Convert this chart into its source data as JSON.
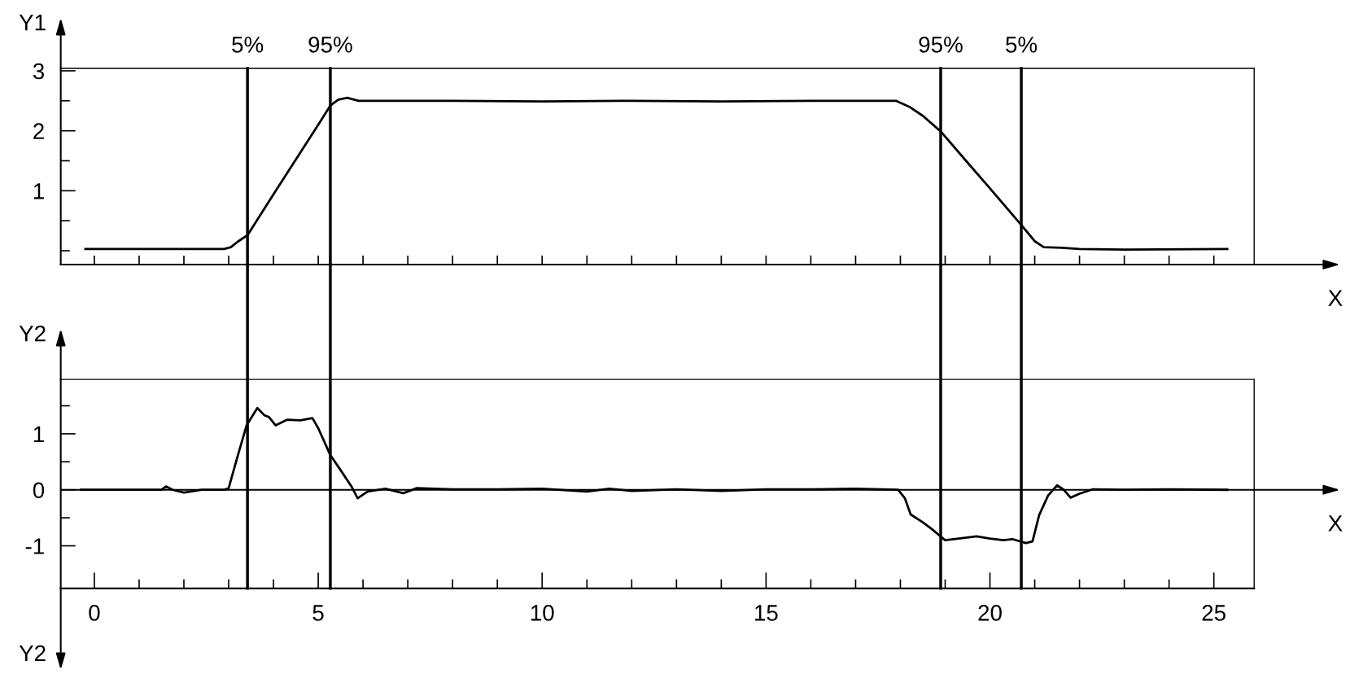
{
  "chart_data": [
    {
      "type": "line",
      "ylabel": "Y1",
      "xlabel": "X",
      "series": [
        {
          "color": "#000000",
          "x": [
            -0.2,
            2.9,
            3.05,
            3.2,
            3.42,
            4.0,
            4.5,
            5.0,
            5.27,
            5.45,
            5.65,
            5.9,
            8,
            10,
            12,
            14,
            16,
            17.9,
            18.2,
            18.5,
            18.9,
            19.5,
            20.0,
            20.7,
            21.0,
            21.2,
            21.6,
            22.0,
            23,
            25.3
          ],
          "values": [
            0.03,
            0.03,
            0.06,
            0.15,
            0.26,
            0.94,
            1.52,
            2.1,
            2.42,
            2.52,
            2.55,
            2.5,
            2.5,
            2.49,
            2.5,
            2.49,
            2.5,
            2.5,
            2.4,
            2.25,
            1.99,
            1.47,
            1.04,
            0.43,
            0.16,
            0.06,
            0.05,
            0.03,
            0.02,
            0.03
          ]
        }
      ],
      "xlim": [
        -0.75,
        25.9
      ],
      "ylim": [
        -0.23,
        3.04
      ],
      "xticks": [
        {
          "value": 0,
          "label": null
        },
        {
          "value": 1,
          "label": null
        },
        {
          "value": 2,
          "label": null
        },
        {
          "value": 3,
          "label": null
        },
        {
          "value": 4,
          "label": null
        },
        {
          "value": 5,
          "label": null
        },
        {
          "value": 6,
          "label": null
        },
        {
          "value": 7,
          "label": null
        },
        {
          "value": 8,
          "label": null
        },
        {
          "value": 9,
          "label": null
        },
        {
          "value": 10,
          "label": null
        },
        {
          "value": 11,
          "label": null
        },
        {
          "value": 12,
          "label": null
        },
        {
          "value": 13,
          "label": null
        },
        {
          "value": 14,
          "label": null
        },
        {
          "value": 15,
          "label": null
        },
        {
          "value": 16,
          "label": null
        },
        {
          "value": 17,
          "label": null
        },
        {
          "value": 18,
          "label": null
        },
        {
          "value": 19,
          "label": null
        },
        {
          "value": 20,
          "label": null
        },
        {
          "value": 21,
          "label": null
        },
        {
          "value": 22,
          "label": null
        },
        {
          "value": 23,
          "label": null
        },
        {
          "value": 24,
          "label": null
        },
        {
          "value": 25,
          "label": null
        }
      ],
      "yticks": [
        {
          "value": 0,
          "label": null
        },
        {
          "value": 0.5,
          "label": null
        },
        1,
        {
          "value": 1.5,
          "label": null
        },
        2,
        {
          "value": 2.5,
          "label": null
        },
        3
      ],
      "tick_labels": "y",
      "grid": false,
      "legend": false,
      "ref_lines": [
        {
          "axis": "x",
          "value": 3.42
        },
        {
          "axis": "x",
          "value": 5.27
        },
        {
          "axis": "x",
          "value": 18.9
        },
        {
          "axis": "x",
          "value": 20.7
        }
      ],
      "annotations": [
        {
          "text": "5%",
          "x": 3.42,
          "y": 3.04
        },
        {
          "text": "95%",
          "x": 5.27,
          "y": 3.04
        },
        {
          "text": "95%",
          "x": 18.9,
          "y": 3.04
        },
        {
          "text": "5%",
          "x": 20.7,
          "y": 3.04
        }
      ]
    },
    {
      "type": "line",
      "ylabel": "Y2",
      "xlabel": "X",
      "series": [
        {
          "color": "#000000",
          "x": [
            -0.3,
            0.5,
            1.0,
            1.5,
            1.6,
            1.75,
            2.0,
            2.4,
            2.9,
            3.0,
            3.2,
            3.4,
            3.64,
            3.8,
            3.9,
            4.05,
            4.3,
            4.6,
            4.87,
            5.0,
            5.27,
            5.5,
            5.75,
            5.88,
            6.1,
            6.5,
            6.9,
            7.2,
            8,
            9,
            10,
            11,
            11.5,
            12,
            13,
            14,
            15,
            16,
            17,
            17.95,
            18.1,
            18.23,
            18.5,
            18.7,
            19.0,
            19.3,
            19.7,
            20.0,
            20.3,
            20.5,
            20.8,
            20.95,
            21.1,
            21.3,
            21.5,
            21.65,
            21.8,
            22.0,
            22.3,
            23,
            24,
            25.3
          ],
          "values": [
            0,
            0,
            0,
            0,
            0.06,
            0.0,
            -0.05,
            0,
            0,
            0.03,
            0.6,
            1.15,
            1.46,
            1.33,
            1.3,
            1.15,
            1.25,
            1.24,
            1.28,
            1.1,
            0.62,
            0.35,
            0.05,
            -0.15,
            -0.03,
            0.02,
            -0.06,
            0.03,
            0.01,
            0.01,
            0.02,
            -0.03,
            0.02,
            -0.02,
            0.01,
            -0.02,
            0.01,
            0.01,
            0.02,
            0.0,
            -0.15,
            -0.44,
            -0.58,
            -0.7,
            -0.9,
            -0.87,
            -0.83,
            -0.87,
            -0.9,
            -0.88,
            -0.95,
            -0.92,
            -0.45,
            -0.1,
            0.08,
            0.0,
            -0.14,
            -0.07,
            0.01,
            0.0,
            0.01,
            0.0
          ]
        }
      ],
      "xlim": [
        -0.75,
        25.9
      ],
      "ylim": [
        -1.76,
        1.97
      ],
      "xticks": [
        {
          "value": 0,
          "label": "0"
        },
        {
          "value": 1,
          "label": null
        },
        {
          "value": 2,
          "label": null
        },
        {
          "value": 3,
          "label": null
        },
        {
          "value": 4,
          "label": null
        },
        {
          "value": 5,
          "label": "5"
        },
        {
          "value": 6,
          "label": null
        },
        {
          "value": 7,
          "label": null
        },
        {
          "value": 8,
          "label": null
        },
        {
          "value": 9,
          "label": null
        },
        {
          "value": 10,
          "label": "10"
        },
        {
          "value": 11,
          "label": null
        },
        {
          "value": 12,
          "label": null
        },
        {
          "value": 13,
          "label": null
        },
        {
          "value": 14,
          "label": null
        },
        {
          "value": 15,
          "label": "15"
        },
        {
          "value": 16,
          "label": null
        },
        {
          "value": 17,
          "label": null
        },
        {
          "value": 18,
          "label": null
        },
        {
          "value": 19,
          "label": null
        },
        {
          "value": 20,
          "label": "20"
        },
        {
          "value": 21,
          "label": null
        },
        {
          "value": 22,
          "label": null
        },
        {
          "value": 23,
          "label": null
        },
        {
          "value": 24,
          "label": null
        },
        {
          "value": 25,
          "label": "25"
        }
      ],
      "yticks": [
        {
          "value": -1,
          "label": "-1"
        },
        {
          "value": -0.5,
          "label": null
        },
        0,
        {
          "value": 0.5,
          "label": null
        },
        1,
        {
          "value": 1.5,
          "label": null
        }
      ],
      "grid": false,
      "legend": false,
      "ref_lines": [
        {
          "axis": "y",
          "value": 0
        },
        {
          "axis": "x",
          "value": 3.42
        },
        {
          "axis": "x",
          "value": 5.27
        },
        {
          "axis": "x",
          "value": 18.9
        },
        {
          "axis": "x",
          "value": 20.7
        }
      ],
      "annotations": [
        "Y2"
      ]
    }
  ]
}
